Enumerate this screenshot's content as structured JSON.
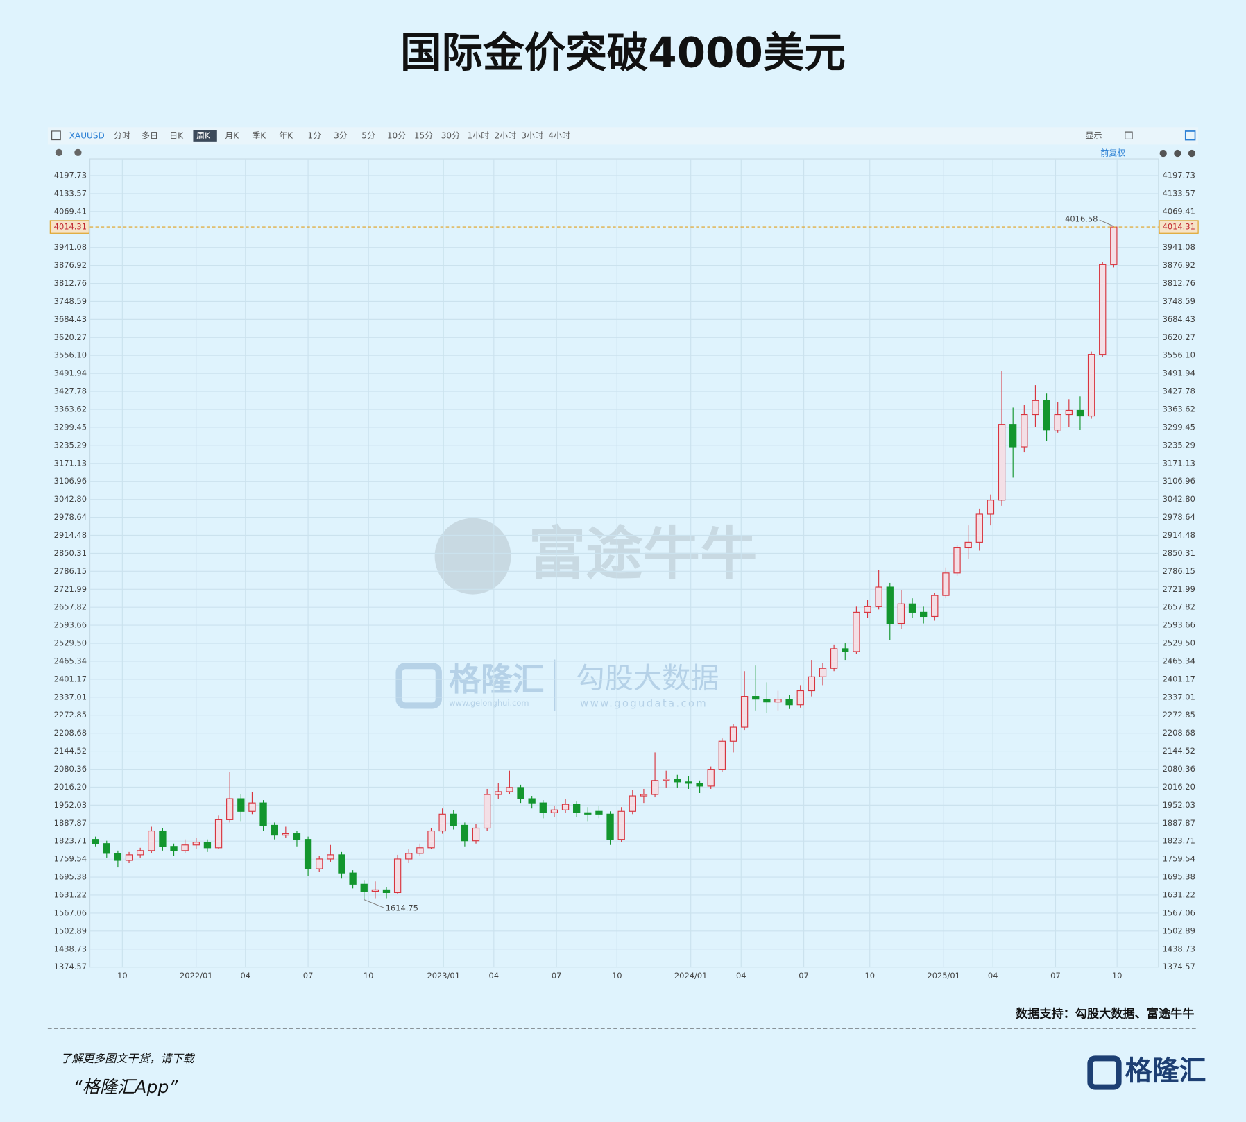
{
  "chart_data": {
    "type": "candlestick",
    "title": "国际金价突破4000美元",
    "xlim": [
      -0.5,
      95
    ],
    "xticks": [
      {
        "value": 2.4,
        "label": "10"
      },
      {
        "value": 9,
        "label": "2022/01"
      },
      {
        "value": 13.4,
        "label": "04"
      },
      {
        "value": 19,
        "label": "07"
      },
      {
        "value": 24.4,
        "label": "10"
      },
      {
        "value": 31.1,
        "label": "2023/01"
      },
      {
        "value": 35.6,
        "label": "04"
      },
      {
        "value": 41.2,
        "label": "07"
      },
      {
        "value": 46.6,
        "label": "10"
      },
      {
        "value": 53.2,
        "label": "2024/01"
      },
      {
        "value": 57.7,
        "label": "04"
      },
      {
        "value": 63.3,
        "label": "07"
      },
      {
        "value": 69.2,
        "label": "10"
      },
      {
        "value": 75.8,
        "label": "2025/01"
      },
      {
        "value": 80.2,
        "label": "04"
      },
      {
        "value": 85.8,
        "label": "07"
      },
      {
        "value": 91.3,
        "label": "10"
      }
    ],
    "ylim": [
      1374.57,
      4257
    ],
    "yticks": [
      4197.73,
      4133.57,
      4069.41,
      3941.08,
      3876.92,
      3812.76,
      3748.59,
      3684.43,
      3620.27,
      {
        "value": 3556.1,
        "label": "3556.10"
      },
      3491.94,
      3427.78,
      3363.62,
      3299.45,
      3235.29,
      3171.13,
      3106.96,
      {
        "value": 3042.8,
        "label": "3042.80"
      },
      2978.64,
      2914.48,
      2850.31,
      2786.15,
      2721.99,
      2657.82,
      2593.66,
      {
        "value": 2529.5,
        "label": "2529.50"
      },
      2465.34,
      2401.17,
      2337.01,
      2272.85,
      2208.68,
      2144.52,
      2080.36,
      {
        "value": 2016.2,
        "label": "2016.20"
      },
      1952.03,
      1887.87,
      1823.71,
      1759.54,
      1695.38,
      1631.22,
      1567.06,
      1502.89,
      1438.73,
      1374.57
    ],
    "grid": true,
    "up_color": "#d8343e",
    "down_color": "#13962e",
    "last_price_color": "#e0a020",
    "candles": {
      "open": [
        1830,
        1815,
        1780,
        1755,
        1775,
        1790,
        1860,
        1805,
        1790,
        1810,
        1820,
        1800,
        1900,
        1975,
        1930,
        1960,
        1880,
        1845,
        1850,
        1830,
        1725,
        1760,
        1775,
        1710,
        1670,
        1645,
        1650,
        1640,
        1760,
        1780,
        1800,
        1860,
        1920,
        1880,
        1825,
        1870,
        1990,
        2000,
        2015,
        1975,
        1960,
        1925,
        1935,
        1955,
        1925,
        1930,
        1920,
        1830,
        1930,
        1985,
        1990,
        2040,
        2045,
        2035,
        2030,
        2020,
        2080,
        2180,
        2230,
        2340,
        2330,
        2320,
        2330,
        2310,
        2360,
        2410,
        2440,
        2510,
        2500,
        2640,
        2660,
        2730,
        2600,
        2670,
        2640,
        2625,
        2700,
        2780,
        2870,
        2890,
        2990,
        3040,
        3310,
        3230,
        3345,
        3395,
        3290,
        3345,
        3360,
        3340,
        3560,
        3880
      ],
      "high": [
        1840,
        1825,
        1790,
        1785,
        1800,
        1875,
        1870,
        1815,
        1830,
        1835,
        1830,
        1915,
        2070,
        1990,
        2000,
        1970,
        1890,
        1875,
        1860,
        1840,
        1770,
        1810,
        1785,
        1720,
        1685,
        1680,
        1660,
        1775,
        1795,
        1815,
        1870,
        1940,
        1935,
        1890,
        1885,
        2010,
        2030,
        2075,
        2025,
        1985,
        1970,
        1950,
        1975,
        1965,
        1945,
        1950,
        1930,
        1945,
        2005,
        2010,
        2140,
        2075,
        2060,
        2055,
        2040,
        2090,
        2190,
        2240,
        2430,
        2450,
        2390,
        2360,
        2345,
        2380,
        2470,
        2460,
        2525,
        2530,
        2660,
        2685,
        2790,
        2745,
        2720,
        2690,
        2660,
        2710,
        2800,
        2880,
        2950,
        3010,
        3060,
        3500,
        3370,
        3380,
        3450,
        3420,
        3390,
        3400,
        3410,
        3570,
        3890,
        4016.58
      ],
      "low": [
        1805,
        1765,
        1730,
        1745,
        1765,
        1780,
        1790,
        1770,
        1780,
        1795,
        1785,
        1795,
        1890,
        1895,
        1920,
        1860,
        1830,
        1835,
        1805,
        1700,
        1715,
        1750,
        1690,
        1655,
        1614.75,
        1620,
        1620,
        1635,
        1745,
        1770,
        1795,
        1850,
        1865,
        1805,
        1815,
        1860,
        1975,
        1990,
        1960,
        1940,
        1905,
        1910,
        1925,
        1910,
        1895,
        1905,
        1810,
        1820,
        1920,
        1960,
        1980,
        2015,
        2015,
        2010,
        1995,
        2010,
        2070,
        2140,
        2220,
        2290,
        2280,
        2290,
        2295,
        2300,
        2340,
        2380,
        2430,
        2470,
        2490,
        2620,
        2650,
        2540,
        2580,
        2620,
        2600,
        2610,
        2690,
        2770,
        2830,
        2860,
        2950,
        3020,
        3120,
        3210,
        3300,
        3250,
        3280,
        3300,
        3290,
        3330,
        3550,
        3870
      ],
      "close": [
        1815,
        1780,
        1755,
        1775,
        1790,
        1860,
        1805,
        1790,
        1810,
        1820,
        1800,
        1900,
        1975,
        1930,
        1960,
        1880,
        1845,
        1850,
        1830,
        1725,
        1760,
        1775,
        1710,
        1670,
        1645,
        1650,
        1640,
        1760,
        1780,
        1800,
        1860,
        1920,
        1880,
        1825,
        1870,
        1990,
        2000,
        2015,
        1975,
        1960,
        1925,
        1935,
        1955,
        1925,
        1920,
        1920,
        1830,
        1930,
        1985,
        1990,
        2040,
        2045,
        2035,
        2030,
        2020,
        2080,
        2180,
        2230,
        2340,
        2330,
        2320,
        2330,
        2310,
        2360,
        2410,
        2440,
        2510,
        2500,
        2640,
        2660,
        2730,
        2600,
        2670,
        2640,
        2625,
        2700,
        2780,
        2870,
        2890,
        2990,
        3040,
        3310,
        3230,
        3345,
        3395,
        3290,
        3345,
        3360,
        3340,
        3560,
        3880,
        4014.31
      ]
    }
  },
  "toolbar": {
    "symbol": "XAUUSD",
    "tabs": [
      "分时",
      "多日",
      "日K",
      "周K",
      "月K",
      "季K",
      "年K",
      "1分",
      "3分",
      "5分",
      "10分",
      "15分",
      "30分",
      "1小时",
      "2小时",
      "3小时",
      "4小时"
    ],
    "active_tab": 3,
    "display": "显示",
    "adjust": "前复权"
  },
  "watermarks": {
    "futu": "富途牛牛",
    "glh": "格隆汇",
    "glh_url": "www.gelonghui.com",
    "gogu": "勾股大数据",
    "gogu_url": "www.gogudata.com"
  },
  "footer": {
    "source": "数据支持：勾股大数据、富途牛牛",
    "promo": "了解更多图文干货，请下载",
    "app": "“格隆汇App”",
    "logo": "格隆汇"
  }
}
